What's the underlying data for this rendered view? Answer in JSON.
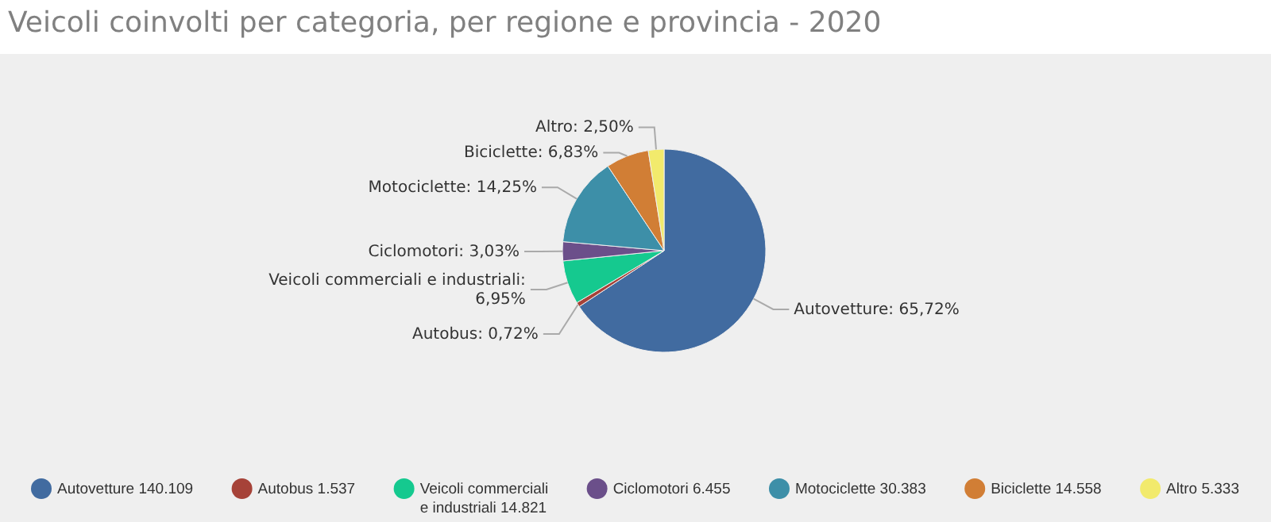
{
  "chart_data": {
    "type": "pie",
    "title": "Veicoli coinvolti per categoria, per regione e provincia - 2020",
    "categories": [
      "Autovetture 140.109",
      "Autobus 1.537",
      "Veicoli commerciali e industriali 14.821",
      "Ciclomotori 6.455",
      "Motociclette 30.383",
      "Biciclette 14.558",
      "Altro 5.333"
    ],
    "values": [
      65.72,
      0.72,
      6.95,
      3.03,
      14.25,
      6.83,
      2.5
    ],
    "value_labels": [
      "Autovetture: 65,72%",
      "Autobus: 0,72%",
      "Veicoli commerciali e industriali: 6,95%",
      "Ciclomotori: 3,03%",
      "Motociclette: 14,25%",
      "Biciclette: 6,83%",
      "Altro: 2,50%"
    ],
    "colors": [
      "#416ba0",
      "#a64238",
      "#15c98f",
      "#6b4f8a",
      "#3d8fa8",
      "#d17e35",
      "#f2ea6c"
    ],
    "legend": "bottom"
  }
}
